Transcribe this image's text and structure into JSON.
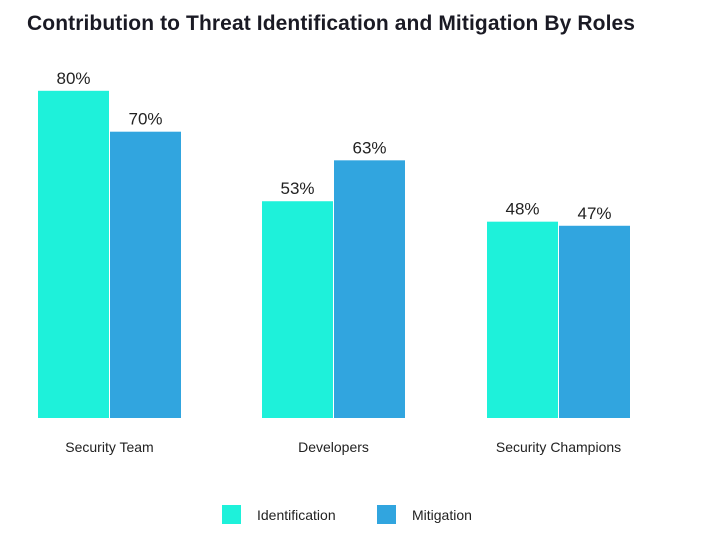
{
  "chart_data": {
    "type": "bar",
    "title": "Contribution to Threat Identification and Mitigation By Roles",
    "categories": [
      "Security Team",
      "Developers",
      "Security Champions"
    ],
    "series": [
      {
        "name": "Identification",
        "values": [
          80,
          53,
          48
        ],
        "color": "#1ef1da"
      },
      {
        "name": "Mitigation",
        "values": [
          70,
          63,
          47
        ],
        "color": "#31a5df"
      }
    ],
    "value_suffix": "%",
    "ylim": [
      0,
      100
    ],
    "grid": false,
    "legend": "bottom",
    "data_labels": true
  }
}
